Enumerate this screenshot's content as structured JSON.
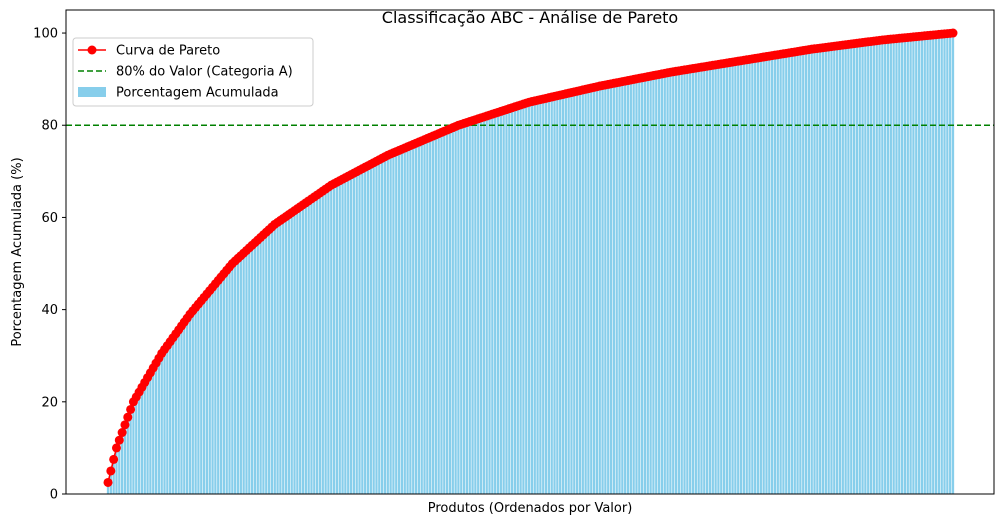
{
  "chart_data": {
    "type": "bar",
    "title": "Classificação ABC - Análise de Pareto",
    "xlabel": "Produtos (Ordenados por Valor)",
    "ylabel": "Porcentagem Acumulada (%)",
    "ylim": [
      0,
      105
    ],
    "yticks": [
      0,
      20,
      40,
      60,
      80,
      100
    ],
    "grid": false,
    "legend_position": "top-left",
    "product_count": 300,
    "cumulative_percent_keypoints": [
      {
        "rank": 1,
        "value": 2.5
      },
      {
        "rank": 2,
        "value": 5.0
      },
      {
        "rank": 4,
        "value": 10.0
      },
      {
        "rank": 10,
        "value": 20.0
      },
      {
        "rank": 20,
        "value": 30.5
      },
      {
        "rank": 30,
        "value": 39.0
      },
      {
        "rank": 45,
        "value": 50.0
      },
      {
        "rank": 60,
        "value": 58.5
      },
      {
        "rank": 80,
        "value": 67.0
      },
      {
        "rank": 100,
        "value": 73.5
      },
      {
        "rank": 125,
        "value": 80.0
      },
      {
        "rank": 150,
        "value": 85.0
      },
      {
        "rank": 175,
        "value": 88.5
      },
      {
        "rank": 200,
        "value": 91.5
      },
      {
        "rank": 225,
        "value": 94.0
      },
      {
        "rank": 250,
        "value": 96.5
      },
      {
        "rank": 275,
        "value": 98.5
      },
      {
        "rank": 300,
        "value": 100.0
      }
    ],
    "reference_line": {
      "value": 80,
      "label": "80% do Valor (Categoria A)",
      "color": "#008000",
      "style": "dashed"
    },
    "series": [
      {
        "name": "Curva de Pareto",
        "kind": "line-markers",
        "color": "#ff0000"
      },
      {
        "name": "Porcentagem Acumulada",
        "kind": "bars",
        "color": "#87ceeb"
      }
    ],
    "legend": [
      {
        "label": "Curva de Pareto",
        "kind": "line-marker",
        "color": "#ff0000"
      },
      {
        "label": "80% do Valor (Categoria A)",
        "kind": "dashed",
        "color": "#008000"
      },
      {
        "label": "Porcentagem Acumulada",
        "kind": "patch",
        "color": "#87ceeb"
      }
    ]
  }
}
